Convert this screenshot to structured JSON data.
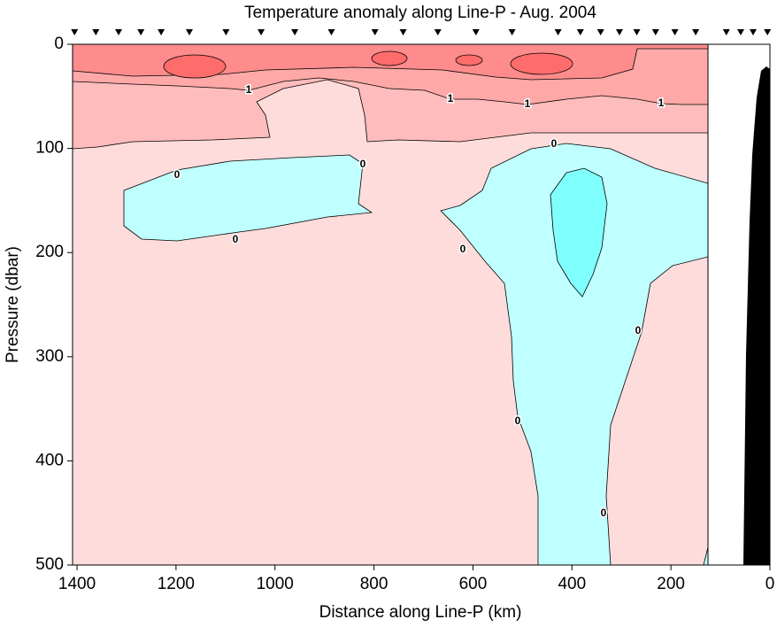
{
  "chart_data": {
    "type": "contour",
    "title": "Temperature anomaly along Line-P - Aug. 2004",
    "xlabel": "Distance along Line-P (km)",
    "ylabel": "Pressure (dbar)",
    "xlim": [
      1409,
      0
    ],
    "xticks": [
      1400,
      1200,
      1000,
      800,
      600,
      400,
      200,
      0
    ],
    "ylim": [
      0,
      500
    ],
    "yticks": [
      0,
      100,
      200,
      300,
      400,
      500
    ],
    "levels": [
      0,
      1
    ],
    "stations": [
      1405,
      1362,
      1316,
      1271,
      1230,
      1173,
      1099,
      1028,
      960,
      886,
      798,
      741,
      671,
      594,
      521,
      428,
      383,
      342,
      304,
      269,
      231,
      192,
      150,
      88,
      59,
      34,
      5
    ]
  }
}
